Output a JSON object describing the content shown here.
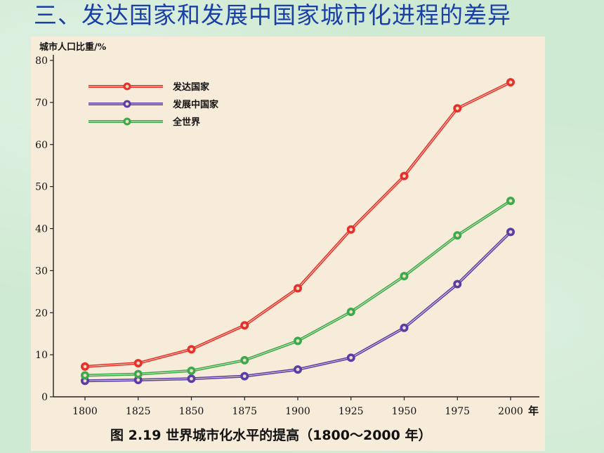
{
  "slide": {
    "title": "三、发达国家和发展中国家城市化进程的差异"
  },
  "chart_data": {
    "type": "line",
    "title": "",
    "caption": "图 2.19   世界城市化水平的提高（1800～2000 年）",
    "xlabel": "年",
    "ylabel": "城市人口比重/%",
    "x": [
      1800,
      1825,
      1850,
      1875,
      1900,
      1925,
      1950,
      1975,
      2000
    ],
    "x_tick_labels": [
      "1800",
      "1825",
      "1850",
      "1875",
      "1900",
      "1925",
      "1950",
      "1975",
      "2000"
    ],
    "ylim": [
      0,
      80
    ],
    "y_ticks": [
      0,
      10,
      20,
      30,
      40,
      50,
      60,
      70,
      80
    ],
    "grid": false,
    "legend_position": "top-left",
    "series": [
      {
        "name": "发达国家",
        "color": "#e8302a",
        "values": [
          7.2,
          8.0,
          11.3,
          17.0,
          25.8,
          39.8,
          52.5,
          68.6,
          74.8
        ]
      },
      {
        "name": "发展中国家",
        "color": "#5a3ea8",
        "values": [
          3.8,
          4.0,
          4.3,
          4.9,
          6.5,
          9.3,
          16.4,
          26.8,
          39.2
        ]
      },
      {
        "name": "全世界",
        "color": "#3aaa4a",
        "values": [
          5.1,
          5.4,
          6.2,
          8.7,
          13.3,
          20.2,
          28.7,
          38.4,
          46.6
        ]
      }
    ]
  }
}
